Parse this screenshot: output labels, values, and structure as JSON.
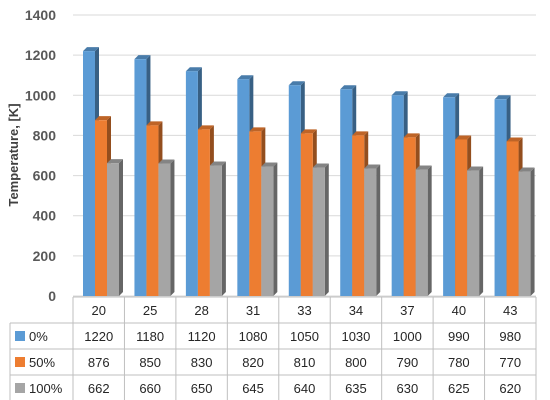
{
  "chart_data": {
    "type": "bar",
    "title": "",
    "xlabel": "",
    "ylabel": "Temperature, [K]",
    "ylim": [
      0,
      1400
    ],
    "yticks": [
      0,
      200,
      400,
      600,
      800,
      1000,
      1200,
      1400
    ],
    "grid": "horizontal",
    "legend": "data-table-left",
    "categories": [
      "20",
      "25",
      "28",
      "31",
      "33",
      "34",
      "37",
      "40",
      "43"
    ],
    "series": [
      {
        "name": "0%",
        "color": "#5b9bd5",
        "values": [
          1220,
          1180,
          1120,
          1080,
          1050,
          1030,
          1000,
          990,
          980
        ]
      },
      {
        "name": "50%",
        "color": "#ed7d31",
        "values": [
          876,
          850,
          830,
          820,
          810,
          800,
          790,
          780,
          770
        ]
      },
      {
        "name": "100%",
        "color": "#a5a5a5",
        "values": [
          662,
          660,
          650,
          645,
          640,
          635,
          630,
          625,
          620
        ]
      }
    ]
  }
}
